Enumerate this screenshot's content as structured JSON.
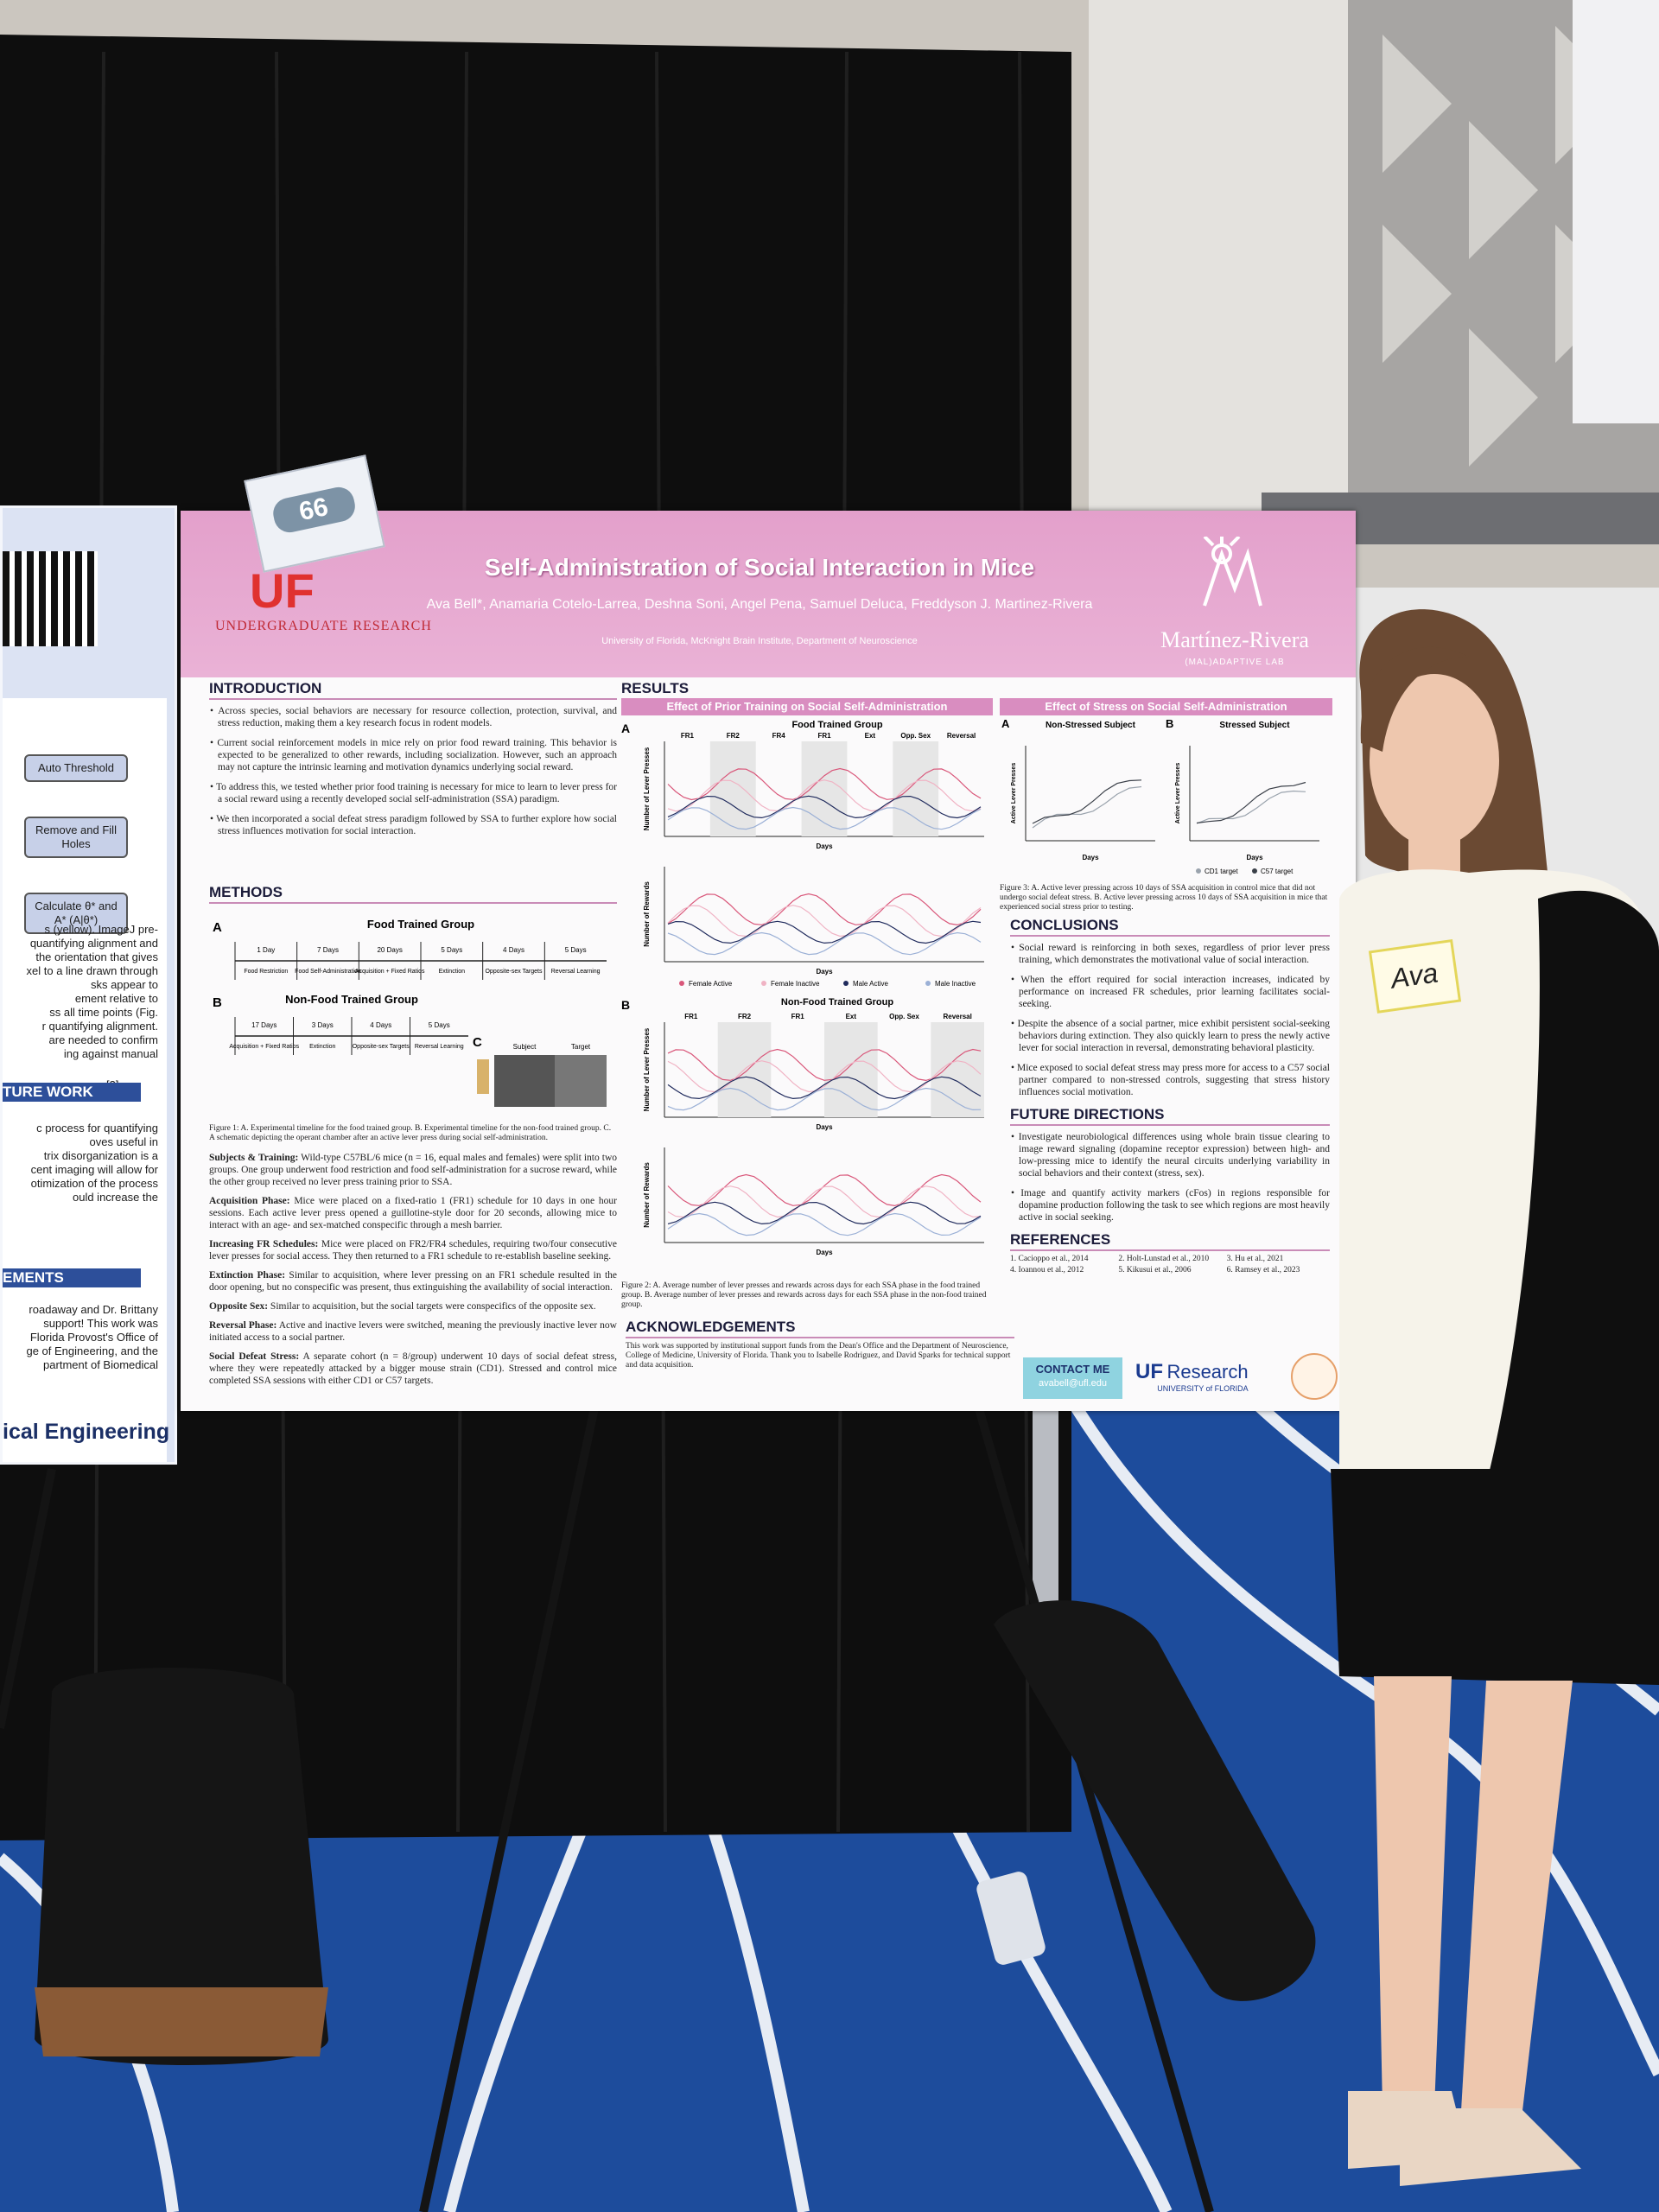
{
  "left_poster": {
    "steps": [
      "Auto Threshold",
      "Remove and Fill Holes",
      "Calculate θ* and A* (A|θ*)"
    ],
    "lines": [
      "s (yellow). ImageJ pre-",
      "quantifying alignment and",
      "the orientation that gives",
      "xel to a line drawn through",
      "sks appear to",
      "ement relative to",
      "ss all time points (Fig.",
      "r quantifying alignment.",
      "are needed to confirm",
      "ing against manual"
    ],
    "ref": "[3]",
    "future_heading": "TURE WORK",
    "future_lines": [
      "c process for quantifying",
      "oves useful in",
      "trix disorganization is a",
      "cent imaging will allow for",
      "otimization of the process",
      "ould increase the"
    ],
    "ack_heading": "EMENTS",
    "ack_lines": [
      "roadaway and Dr. Brittany",
      "support! This work was",
      "Florida Provost's Office of",
      "ge of Engineering, and the",
      "partment of Biomedical"
    ],
    "footer": "ical Engineering"
  },
  "poster": {
    "badge": "66",
    "logo_left": "UF",
    "logo_left_sub": "UNDERGRADUATE RESEARCH",
    "title": "Self-Administration of Social Interaction in Mice",
    "authors": "Ava Bell*, Anamaria Cotelo-Larrea, Deshna Soni, Angel Pena, Samuel Deluca, Freddyson J. Martinez-Rivera",
    "affiliation": "University of Florida, McKnight Brain Institute, Department of Neuroscience",
    "lab": "Martínez-Rivera",
    "lab_sub": "(MAL)ADAPTIVE LAB",
    "introduction": {
      "heading": "INTRODUCTION",
      "bullets": [
        "Across species, social behaviors are necessary for resource collection, protection, survival, and stress reduction, making them a key research focus in rodent models.",
        "Current social reinforcement models in mice rely on prior food reward training. This behavior is expected to be generalized to other rewards, including socialization. However, such an approach may not capture the intrinsic learning and motivation dynamics underlying social reward.",
        "To address this, we tested whether prior food training is necessary for mice to learn to lever press for a social reward using a recently developed social self-administration (SSA) paradigm.",
        "We then incorporated a social defeat stress paradigm followed by SSA to further explore how social stress influences motivation for social interaction."
      ]
    },
    "methods": {
      "heading": "METHODS",
      "timeline_a": {
        "letter": "A",
        "title": "Food Trained Group",
        "durations": [
          "1 Day",
          "7 Days",
          "20 Days",
          "5 Days",
          "4 Days",
          "5 Days"
        ],
        "phases": [
          "Food Restriction",
          "Food Self-Administration",
          "Acquisition + Fixed Ratios",
          "Extinction",
          "Opposite-sex Targets",
          "Reversal Learning"
        ]
      },
      "timeline_b": {
        "letter": "B",
        "title": "Non-Food Trained Group",
        "durations": [
          "17 Days",
          "3 Days",
          "4 Days",
          "5 Days"
        ],
        "phases": [
          "Acquisition + Fixed Ratios",
          "Extinction",
          "Opposite-sex Targets",
          "Reversal Learning"
        ]
      },
      "schematic": {
        "letter": "C",
        "labels": [
          "Subject",
          "Target"
        ]
      },
      "caption": "Figure 1: A. Experimental timeline for the food trained group. B. Experimental timeline for the non-food trained group. C. A schematic depicting the operant chamber after an active lever press during social self-administration.",
      "paragraphs": [
        {
          "label": "Subjects & Training:",
          "text": "Wild-type C57BL/6 mice (n = 16, equal males and females) were split into two groups. One group underwent food restriction and food self-administration for a sucrose reward, while the other group received no lever press training prior to SSA."
        },
        {
          "label": "Acquisition Phase:",
          "text": "Mice were placed on a fixed-ratio 1 (FR1) schedule for 10 days in one hour sessions. Each active lever press opened a guillotine-style door for 20 seconds, allowing mice to interact with an age- and sex-matched conspecific through a mesh barrier."
        },
        {
          "label": "Increasing FR Schedules:",
          "text": "Mice were placed on FR2/FR4 schedules, requiring two/four consecutive lever presses for social access. They then returned to a FR1 schedule to re-establish baseline seeking."
        },
        {
          "label": "Extinction Phase:",
          "text": "Similar to acquisition, where lever pressing on an FR1 schedule resulted in the door opening, but no conspecific was present, thus extinguishing the availability of social interaction."
        },
        {
          "label": "Opposite Sex:",
          "text": "Similar to acquisition, but the social targets were conspecifics of the opposite sex."
        },
        {
          "label": "Reversal Phase:",
          "text": "Active and inactive levers were switched, meaning the previously inactive lever now initiated access to a social partner."
        },
        {
          "label": "Social Defeat Stress:",
          "text": "A separate cohort (n = 8/group) underwent 10 days of social defeat stress, where they were repeatedly attacked by a bigger mouse strain (CD1). Stressed and control mice completed SSA sessions with either CD1 or C57 targets."
        }
      ]
    },
    "results": {
      "heading": "RESULTS",
      "training": {
        "header": "Effect of Prior Training on Social Self-Administration",
        "food": {
          "letter": "A",
          "title": "Food Trained Group",
          "phases": [
            "FR1",
            "FR2",
            "FR4",
            "FR1",
            "Ext",
            "Opp. Sex",
            "Reversal"
          ]
        },
        "nonfood": {
          "letter": "B",
          "title": "Non-Food Trained Group",
          "phases": [
            "FR1",
            "FR2",
            "FR1",
            "Ext",
            "Opp. Sex",
            "Reversal"
          ]
        },
        "y_labels": [
          "Number of Lever Presses",
          "Number of Rewards"
        ],
        "x_label": "Days",
        "legend": [
          "Female Active",
          "Female Inactive",
          "Male Active",
          "Male Inactive"
        ],
        "caption": "Figure 2: A. Average number of lever presses and rewards across days for each SSA phase in the food trained group. B. Average number of lever presses and rewards across days for each SSA phase in the non-food trained group."
      },
      "stress": {
        "header": "Effect of Stress on Social Self-Administration",
        "panels": [
          {
            "letter": "A",
            "title": "Non-Stressed Subject"
          },
          {
            "letter": "B",
            "title": "Stressed Subject"
          }
        ],
        "y_label": "Active Lever Presses",
        "x_label": "Days",
        "legend": [
          "CD1 target",
          "C57 target"
        ],
        "caption": "Figure 3: A. Active lever pressing across 10 days of SSA acquisition in control mice that did not undergo social defeat stress. B. Active lever pressing across 10 days of SSA acquisition in mice that experienced social stress prior to testing."
      }
    },
    "conclusions": {
      "heading": "CONCLUSIONS",
      "bullets": [
        "Social reward is reinforcing in both sexes, regardless of prior lever press training, which demonstrates the motivational value of social interaction.",
        "When the effort required for social interaction increases, indicated by performance on increased FR schedules, prior learning facilitates social-seeking.",
        "Despite the absence of a social partner, mice exhibit persistent social-seeking behaviors during extinction. They also quickly learn to press the newly active lever for social interaction in reversal, demonstrating behavioral plasticity.",
        "Mice exposed to social defeat stress may press more for access to a C57 social partner compared to non-stressed controls, suggesting that stress history influences social motivation."
      ]
    },
    "future_directions": {
      "heading": "FUTURE DIRECTIONS",
      "bullets": [
        "Investigate neurobiological differences using whole brain tissue clearing to image reward signaling (dopamine receptor expression) between high- and low-pressing mice to identify the neural circuits underlying variability in social behaviors and their context (stress, sex).",
        "Image and quantify activity markers (cFos) in regions responsible for dopamine production following the task to see which regions are most heavily active in social seeking."
      ]
    },
    "references": {
      "heading": "REFERENCES",
      "items": [
        "1. Cacioppo et al., 2014",
        "2. Holt-Lunstad et al., 2010",
        "3. Hu et al., 2021",
        "4. Ioannou et al., 2012",
        "5. Kikusui et al., 2006",
        "6. Ramsey et al., 2023"
      ]
    },
    "acknowledgements": {
      "heading": "ACKNOWLEDGEMENTS",
      "text": "This work was supported by institutional support funds from the Dean's Office and the Department of Neuroscience, College of Medicine, University of Florida. Thank you to Isabelle Rodriguez, and David Sparks for technical support and data acquisition."
    },
    "contact": {
      "label": "CONTACT ME",
      "email": "avabell@ufl.edu"
    },
    "sponsor": {
      "mark": "UF",
      "name": "Research",
      "sub": "UNIVERSITY of FLORIDA"
    }
  },
  "name_tag": "Ava"
}
